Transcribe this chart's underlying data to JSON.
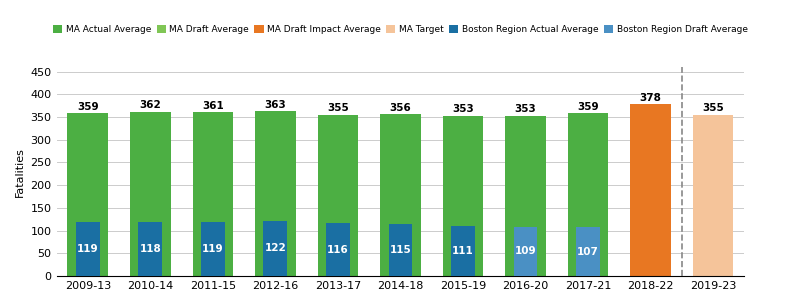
{
  "categories": [
    "2009-13",
    "2010-14",
    "2011-15",
    "2012-16",
    "2013-17",
    "2014-18",
    "2015-19",
    "2016-20",
    "2017-21",
    "2018-22",
    "2019-23"
  ],
  "ma_values": [
    359,
    362,
    361,
    363,
    355,
    356,
    353,
    353,
    359,
    378,
    355
  ],
  "boston_values": [
    119,
    118,
    119,
    122,
    116,
    115,
    111,
    109,
    107,
    null,
    null
  ],
  "ma_colors": [
    "#4caf43",
    "#4caf43",
    "#4caf43",
    "#4caf43",
    "#4caf43",
    "#4caf43",
    "#4caf43",
    "#4caf43",
    "#4caf43",
    "#e87722",
    "#f5c49a"
  ],
  "boston_colors": [
    "#1a6fa3",
    "#1a6fa3",
    "#1a6fa3",
    "#1a6fa3",
    "#1a6fa3",
    "#1a6fa3",
    "#1a6fa3",
    "#4a90c4",
    "#4a90c4",
    null,
    null
  ],
  "ylabel": "Fatalities",
  "ylim": [
    0,
    460
  ],
  "yticks": [
    0,
    50,
    100,
    150,
    200,
    250,
    300,
    350,
    400,
    450
  ],
  "dashed_line_x": 9.5,
  "legend": [
    {
      "label": "MA Actual Average",
      "color": "#4caf43"
    },
    {
      "label": "MA Draft Average",
      "color": "#80c655"
    },
    {
      "label": "MA Draft Impact Average",
      "color": "#e87722"
    },
    {
      "label": "MA Target",
      "color": "#f5c49a"
    },
    {
      "label": "Boston Region Actual Average",
      "color": "#1a6fa3"
    },
    {
      "label": "Boston Region Draft Average",
      "color": "#4a90c4"
    }
  ],
  "ma_bar_width": 0.65,
  "boston_bar_width": 0.38,
  "figsize": [
    8.0,
    3.06
  ],
  "dpi": 100
}
